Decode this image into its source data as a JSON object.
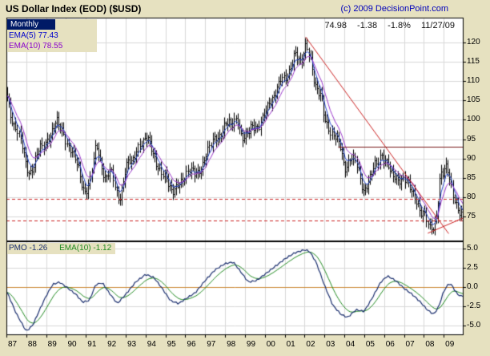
{
  "header": {
    "title": "US Dollar Index (EOD) ($USD)",
    "copyright": "(c) 2009 DecisionPoint.com"
  },
  "quote": {
    "last": "74.98",
    "change": "-1.38",
    "change_pct": "-1.8%",
    "date": "11/27/09"
  },
  "legend": {
    "timeframe": "Monthly",
    "ema5": "EMA(5) 77.43",
    "ema10": "EMA(10) 78.55"
  },
  "pmo_legend": {
    "pmo": "PMO -1.26",
    "ema10": "EMA(10) -1.12"
  },
  "colors": {
    "background": "#E6E1C0",
    "panel": "#FFFFFF",
    "grid": "#D8D8D8",
    "frame": "#000000",
    "bars": "#000000",
    "ema5": "#2244CC",
    "ema10": "#9933CC",
    "trendline": "#CC2222",
    "level_dashed": "#CC2222",
    "level_solid": "#7A1A1A",
    "zero_line": "#CC8833",
    "pmo_line": "#1A2E6E",
    "pmo_ema_line": "#1F8A1F",
    "label_ema5": "#0000CC",
    "label_ema10": "#8800CC",
    "copyright_blue": "#0000BB",
    "timeframe_bg": "#001A66"
  },
  "chart_data": [
    {
      "type": "ohlc",
      "name": "US Dollar Index (EOD) ($USD) Monthly",
      "x_range": [
        1987,
        2010
      ],
      "y_range": [
        68.5,
        126.5
      ],
      "y_ticks": [
        120,
        115,
        110,
        105,
        100,
        95,
        90,
        85,
        80,
        75
      ],
      "x_tick_labels": [
        "87",
        "88",
        "89",
        "90",
        "91",
        "92",
        "93",
        "94",
        "95",
        "96",
        "97",
        "98",
        "99",
        "00",
        "01",
        "02",
        "03",
        "04",
        "05",
        "06",
        "07",
        "08",
        "09"
      ],
      "anchors_close": [
        [
          1987.0,
          107
        ],
        [
          1987.17,
          102
        ],
        [
          1987.33,
          99
        ],
        [
          1987.5,
          98
        ],
        [
          1987.67,
          96
        ],
        [
          1987.83,
          92
        ],
        [
          1988.0,
          87
        ],
        [
          1988.17,
          86
        ],
        [
          1988.33,
          88
        ],
        [
          1988.5,
          91
        ],
        [
          1988.67,
          93
        ],
        [
          1988.83,
          92.5
        ],
        [
          1989.0,
          94
        ],
        [
          1989.17,
          96
        ],
        [
          1989.33,
          98
        ],
        [
          1989.5,
          100.5
        ],
        [
          1989.67,
          98
        ],
        [
          1989.83,
          96.5
        ],
        [
          1990.0,
          94
        ],
        [
          1990.17,
          93
        ],
        [
          1990.33,
          92
        ],
        [
          1990.5,
          89.5
        ],
        [
          1990.67,
          86
        ],
        [
          1990.83,
          82
        ],
        [
          1991.0,
          81.5
        ],
        [
          1991.17,
          84
        ],
        [
          1991.33,
          89
        ],
        [
          1991.5,
          93.5
        ],
        [
          1991.67,
          90
        ],
        [
          1991.83,
          86.5
        ],
        [
          1992.0,
          85
        ],
        [
          1992.17,
          87.5
        ],
        [
          1992.33,
          86
        ],
        [
          1992.5,
          81
        ],
        [
          1992.67,
          78.8
        ],
        [
          1992.83,
          83
        ],
        [
          1993.0,
          88.5
        ],
        [
          1993.17,
          90
        ],
        [
          1993.33,
          88.5
        ],
        [
          1993.5,
          91
        ],
        [
          1993.67,
          93.5
        ],
        [
          1993.83,
          94.5
        ],
        [
          1994.0,
          96
        ],
        [
          1994.17,
          94.5
        ],
        [
          1994.33,
          91.5
        ],
        [
          1994.5,
          89
        ],
        [
          1994.67,
          87.5
        ],
        [
          1994.83,
          86.5
        ],
        [
          1995.0,
          85.5
        ],
        [
          1995.17,
          82.5
        ],
        [
          1995.33,
          80.8
        ],
        [
          1995.5,
          82.5
        ],
        [
          1995.67,
          84
        ],
        [
          1995.83,
          84.5
        ],
        [
          1996.0,
          85.5
        ],
        [
          1996.17,
          86.5
        ],
        [
          1996.33,
          87
        ],
        [
          1996.5,
          86.5
        ],
        [
          1996.67,
          87
        ],
        [
          1996.83,
          87.5
        ],
        [
          1997.0,
          90
        ],
        [
          1997.17,
          92.5
        ],
        [
          1997.33,
          94.5
        ],
        [
          1997.5,
          96
        ],
        [
          1997.67,
          95.5
        ],
        [
          1997.83,
          96.5
        ],
        [
          1998.0,
          98.5
        ],
        [
          1998.17,
          99.5
        ],
        [
          1998.33,
          99
        ],
        [
          1998.5,
          101
        ],
        [
          1998.67,
          99
        ],
        [
          1998.83,
          94.5
        ],
        [
          1999.0,
          95.5
        ],
        [
          1999.17,
          97
        ],
        [
          1999.33,
          99
        ],
        [
          1999.5,
          98.5
        ],
        [
          1999.67,
          97.5
        ],
        [
          1999.83,
          99.5
        ],
        [
          2000.0,
          102
        ],
        [
          2000.17,
          104.5
        ],
        [
          2000.33,
          105.5
        ],
        [
          2000.5,
          106.5
        ],
        [
          2000.67,
          108.5
        ],
        [
          2000.83,
          111
        ],
        [
          2001.0,
          110.5
        ],
        [
          2001.17,
          112.5
        ],
        [
          2001.33,
          114.5
        ],
        [
          2001.5,
          117.5
        ],
        [
          2001.67,
          115.5
        ],
        [
          2001.83,
          114.5
        ],
        [
          2002.0,
          118.5
        ],
        [
          2002.08,
          120.2
        ],
        [
          2002.17,
          118.5
        ],
        [
          2002.33,
          115
        ],
        [
          2002.5,
          108.5
        ],
        [
          2002.67,
          107
        ],
        [
          2002.83,
          106.5
        ],
        [
          2003.0,
          101
        ],
        [
          2003.17,
          98.5
        ],
        [
          2003.33,
          96
        ],
        [
          2003.5,
          95.5
        ],
        [
          2003.67,
          94.5
        ],
        [
          2003.83,
          93
        ],
        [
          2004.0,
          87.5
        ],
        [
          2004.17,
          88.5
        ],
        [
          2004.33,
          90
        ],
        [
          2004.5,
          89.5
        ],
        [
          2004.67,
          88
        ],
        [
          2004.83,
          84
        ],
        [
          2005.0,
          81.5
        ],
        [
          2005.17,
          83.5
        ],
        [
          2005.33,
          85
        ],
        [
          2005.5,
          88.5
        ],
        [
          2005.67,
          89
        ],
        [
          2005.83,
          91.5
        ],
        [
          2006.0,
          89.5
        ],
        [
          2006.17,
          88.5
        ],
        [
          2006.33,
          86
        ],
        [
          2006.5,
          85.5
        ],
        [
          2006.67,
          85
        ],
        [
          2006.83,
          84.5
        ],
        [
          2007.0,
          84.8
        ],
        [
          2007.17,
          83.5
        ],
        [
          2007.33,
          82
        ],
        [
          2007.5,
          80.5
        ],
        [
          2007.67,
          79
        ],
        [
          2007.83,
          76
        ],
        [
          2008.0,
          75.5
        ],
        [
          2008.17,
          73.5
        ],
        [
          2008.25,
          71.5
        ],
        [
          2008.33,
          72.5
        ],
        [
          2008.5,
          72.3
        ],
        [
          2008.67,
          77
        ],
        [
          2008.83,
          86.5
        ],
        [
          2009.0,
          85.8
        ],
        [
          2009.17,
          88.5
        ],
        [
          2009.25,
          85.5
        ],
        [
          2009.33,
          84
        ],
        [
          2009.5,
          80
        ],
        [
          2009.67,
          77.5
        ],
        [
          2009.83,
          75.2
        ],
        [
          2009.92,
          74.98
        ]
      ],
      "overlays": [
        {
          "name": "EMA(5)",
          "period": 5,
          "value": 77.43
        },
        {
          "name": "EMA(10)",
          "period": 10,
          "value": 78.55
        }
      ],
      "annotations": [
        {
          "kind": "trendline",
          "from": [
            2002.05,
            121.5
          ],
          "to": [
            2009.25,
            70.5
          ],
          "style": "solid"
        },
        {
          "kind": "trendline",
          "from": [
            2008.2,
            70.6
          ],
          "to": [
            2010.0,
            74.6
          ],
          "style": "solid"
        },
        {
          "kind": "hline",
          "level": 93,
          "x_from": 2003.7,
          "x_to": 2010,
          "style": "solid_dark"
        },
        {
          "kind": "hline",
          "level": 79.6,
          "x_from": 1987,
          "x_to": 2010,
          "style": "dashed"
        },
        {
          "kind": "hline",
          "level": 73.9,
          "x_from": 1987,
          "x_to": 2010,
          "style": "dashed"
        }
      ],
      "last_close": 74.98
    },
    {
      "type": "line",
      "name": "PMO",
      "y_range": [
        -6.3,
        5.9
      ],
      "y_ticks": [
        "5.0",
        "2.5",
        "0.0",
        "-2.5",
        "-5.0"
      ],
      "zero_line": 0,
      "pmo_value": -1.26,
      "ema10_value": -1.12,
      "anchors_pmo": [
        [
          1987.0,
          -0.5
        ],
        [
          1987.5,
          -3.5
        ],
        [
          1988.0,
          -5.8
        ],
        [
          1988.33,
          -5.0
        ],
        [
          1988.67,
          -3.0
        ],
        [
          1989.0,
          -1.2
        ],
        [
          1989.33,
          0.3
        ],
        [
          1989.67,
          0.6
        ],
        [
          1990.0,
          0.0
        ],
        [
          1990.5,
          -1.0
        ],
        [
          1990.83,
          -2.0
        ],
        [
          1991.17,
          -1.8
        ],
        [
          1991.5,
          0.3
        ],
        [
          1991.83,
          0.5
        ],
        [
          1992.17,
          -0.8
        ],
        [
          1992.58,
          -2.2
        ],
        [
          1993.0,
          -1.0
        ],
        [
          1993.5,
          0.6
        ],
        [
          1994.0,
          1.6
        ],
        [
          1994.42,
          1.2
        ],
        [
          1994.83,
          -0.2
        ],
        [
          1995.25,
          -1.8
        ],
        [
          1995.67,
          -2.2
        ],
        [
          1996.0,
          -1.6
        ],
        [
          1996.5,
          -0.8
        ],
        [
          1997.0,
          0.8
        ],
        [
          1997.5,
          2.2
        ],
        [
          1998.0,
          3.0
        ],
        [
          1998.42,
          3.2
        ],
        [
          1998.83,
          1.8
        ],
        [
          1999.17,
          0.6
        ],
        [
          1999.58,
          0.8
        ],
        [
          2000.0,
          1.6
        ],
        [
          2000.5,
          2.6
        ],
        [
          2001.0,
          3.6
        ],
        [
          2001.5,
          4.4
        ],
        [
          2002.0,
          4.8
        ],
        [
          2002.25,
          4.6
        ],
        [
          2002.58,
          3.2
        ],
        [
          2003.0,
          0.2
        ],
        [
          2003.42,
          -2.4
        ],
        [
          2003.83,
          -3.6
        ],
        [
          2004.17,
          -4.0
        ],
        [
          2004.58,
          -3.0
        ],
        [
          2005.0,
          -3.2
        ],
        [
          2005.42,
          -1.4
        ],
        [
          2005.83,
          0.6
        ],
        [
          2006.17,
          1.4
        ],
        [
          2006.58,
          0.8
        ],
        [
          2007.0,
          -0.2
        ],
        [
          2007.42,
          -1.0
        ],
        [
          2007.83,
          -2.0
        ],
        [
          2008.17,
          -3.0
        ],
        [
          2008.5,
          -3.6
        ],
        [
          2008.75,
          -2.6
        ],
        [
          2009.0,
          -0.6
        ],
        [
          2009.25,
          0.4
        ],
        [
          2009.42,
          0.2
        ],
        [
          2009.58,
          -0.6
        ],
        [
          2009.75,
          -1.1
        ],
        [
          2009.92,
          -1.26
        ]
      ]
    }
  ]
}
